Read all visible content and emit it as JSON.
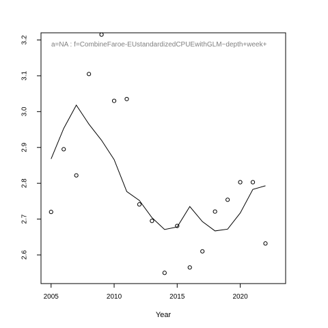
{
  "chart_data": {
    "type": "scatter",
    "xlabel": "Year",
    "ylabel": "",
    "annotation": "a=NA  :  f=CombineFaroe-EUstandardizedCPUEwithGLM~depth+week+",
    "xlim": [
      2004.2,
      2023.6
    ],
    "ylim": [
      2.52,
      3.22
    ],
    "x_ticks": [
      2005,
      2010,
      2015,
      2020
    ],
    "y_ticks": [
      2.6,
      2.7,
      2.8,
      2.9,
      3.0,
      3.1,
      3.2
    ],
    "x_tick_labels": [
      "2005",
      "2010",
      "2015",
      "2020"
    ],
    "y_tick_labels": [
      "2.6",
      "2.7",
      "2.8",
      "2.9",
      "3.0",
      "3.1",
      "3.2"
    ],
    "grid": false,
    "series": [
      {
        "style": "points",
        "color": "#000000",
        "x": [
          2005,
          2006,
          2007,
          2008,
          2009,
          2010,
          2011,
          2012,
          2013,
          2014,
          2015,
          2016,
          2017,
          2018,
          2019,
          2020,
          2021,
          2022
        ],
        "y": [
          2.72,
          2.895,
          2.822,
          3.105,
          3.215,
          3.03,
          3.035,
          2.741,
          2.695,
          2.55,
          2.681,
          2.565,
          2.61,
          2.721,
          2.754,
          2.803,
          2.803,
          2.632
        ]
      },
      {
        "style": "line",
        "color": "#000000",
        "x": [
          2005,
          2006,
          2007,
          2008,
          2009,
          2010,
          2011,
          2012,
          2013,
          2014,
          2015,
          2016,
          2017,
          2018,
          2019,
          2020,
          2021,
          2022
        ],
        "y": [
          2.868,
          2.953,
          3.018,
          2.965,
          2.92,
          2.866,
          2.777,
          2.752,
          2.704,
          2.671,
          2.678,
          2.735,
          2.693,
          2.667,
          2.672,
          2.717,
          2.783,
          2.793
        ]
      }
    ]
  }
}
